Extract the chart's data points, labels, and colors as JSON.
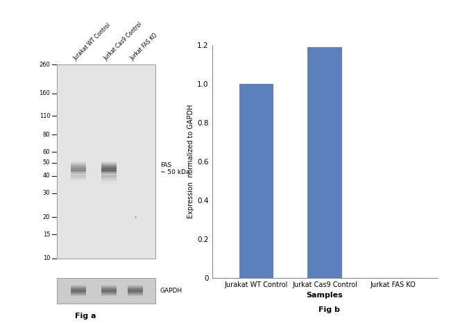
{
  "fig_a_label": "Fig a",
  "fig_b_label": "Fig b",
  "mw_markers": [
    260,
    160,
    110,
    80,
    60,
    50,
    40,
    30,
    20,
    15,
    10
  ],
  "lane_labels": [
    "Jurakat WT Control",
    "Jurkat Cas9 Control",
    "Jurkat FAS KO"
  ],
  "fas_label": "FAS\n~ 50 kDa",
  "gapdh_label": "GAPDH",
  "bar_categories": [
    "Jurakat WT Control",
    "Jurkat Cas9 Control",
    "Jurkat FAS KO"
  ],
  "bar_values": [
    1.0,
    1.19,
    0.0
  ],
  "bar_color": "#5b80bc",
  "ylabel": "Expression  normalized to GAPDH",
  "xlabel": "Samples",
  "ylim": [
    0,
    1.2
  ],
  "yticks": [
    0,
    0.2,
    0.4,
    0.6,
    0.8,
    1.0,
    1.2
  ],
  "background_color": "#ffffff",
  "gel_bg_color": "#e4e4e4",
  "gapdh_bg_color": "#cccccc",
  "band_color_fas": "#444444",
  "band_color_gapdh": "#333333"
}
